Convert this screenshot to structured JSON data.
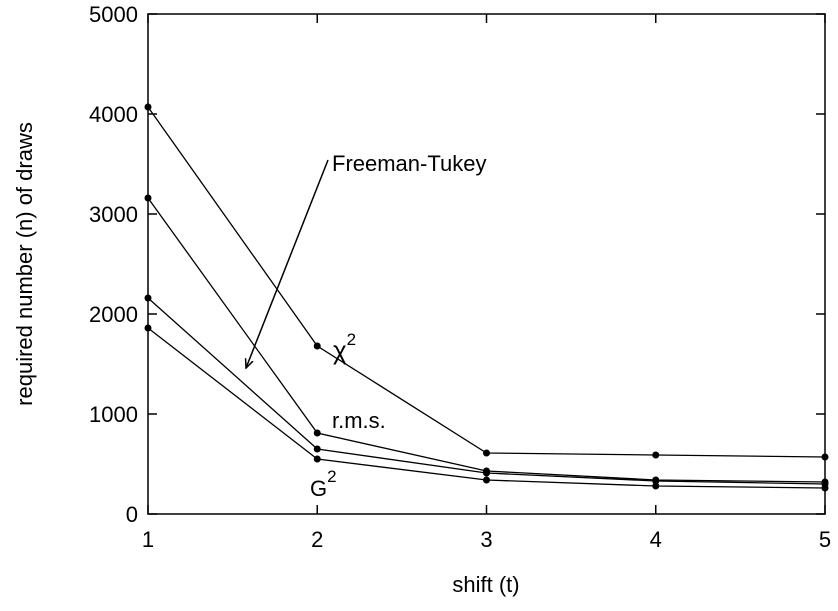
{
  "chart_data": {
    "type": "line",
    "xlabel": "shift (t)",
    "ylabel": "required number (n) of draws",
    "xlim": [
      1,
      5
    ],
    "ylim": [
      0,
      5000
    ],
    "x_ticks": [
      "1",
      "2",
      "3",
      "4",
      "5"
    ],
    "y_ticks": [
      "0",
      "1000",
      "2000",
      "3000",
      "4000",
      "5000"
    ],
    "grid": false,
    "legend": "none",
    "x": [
      1,
      2,
      3,
      4,
      5
    ],
    "series": [
      {
        "label_key": "chi2",
        "values": [
          4070,
          1680,
          610,
          590,
          570
        ]
      },
      {
        "label_key": "rms",
        "values": [
          3160,
          810,
          430,
          340,
          320
        ]
      },
      {
        "label_key": "ft",
        "values": [
          2160,
          650,
          410,
          330,
          300
        ]
      },
      {
        "label_key": "g2",
        "values": [
          1860,
          550,
          340,
          280,
          260
        ]
      }
    ],
    "annotations": {
      "chi_base": "χ",
      "chi_sup": "2",
      "rms": "r.m.s.",
      "g_base": "G",
      "g_sup": "2",
      "freeman_tukey": "Freeman-Tukey"
    },
    "colors": {
      "line": "#000000",
      "marker": "#000000"
    }
  }
}
